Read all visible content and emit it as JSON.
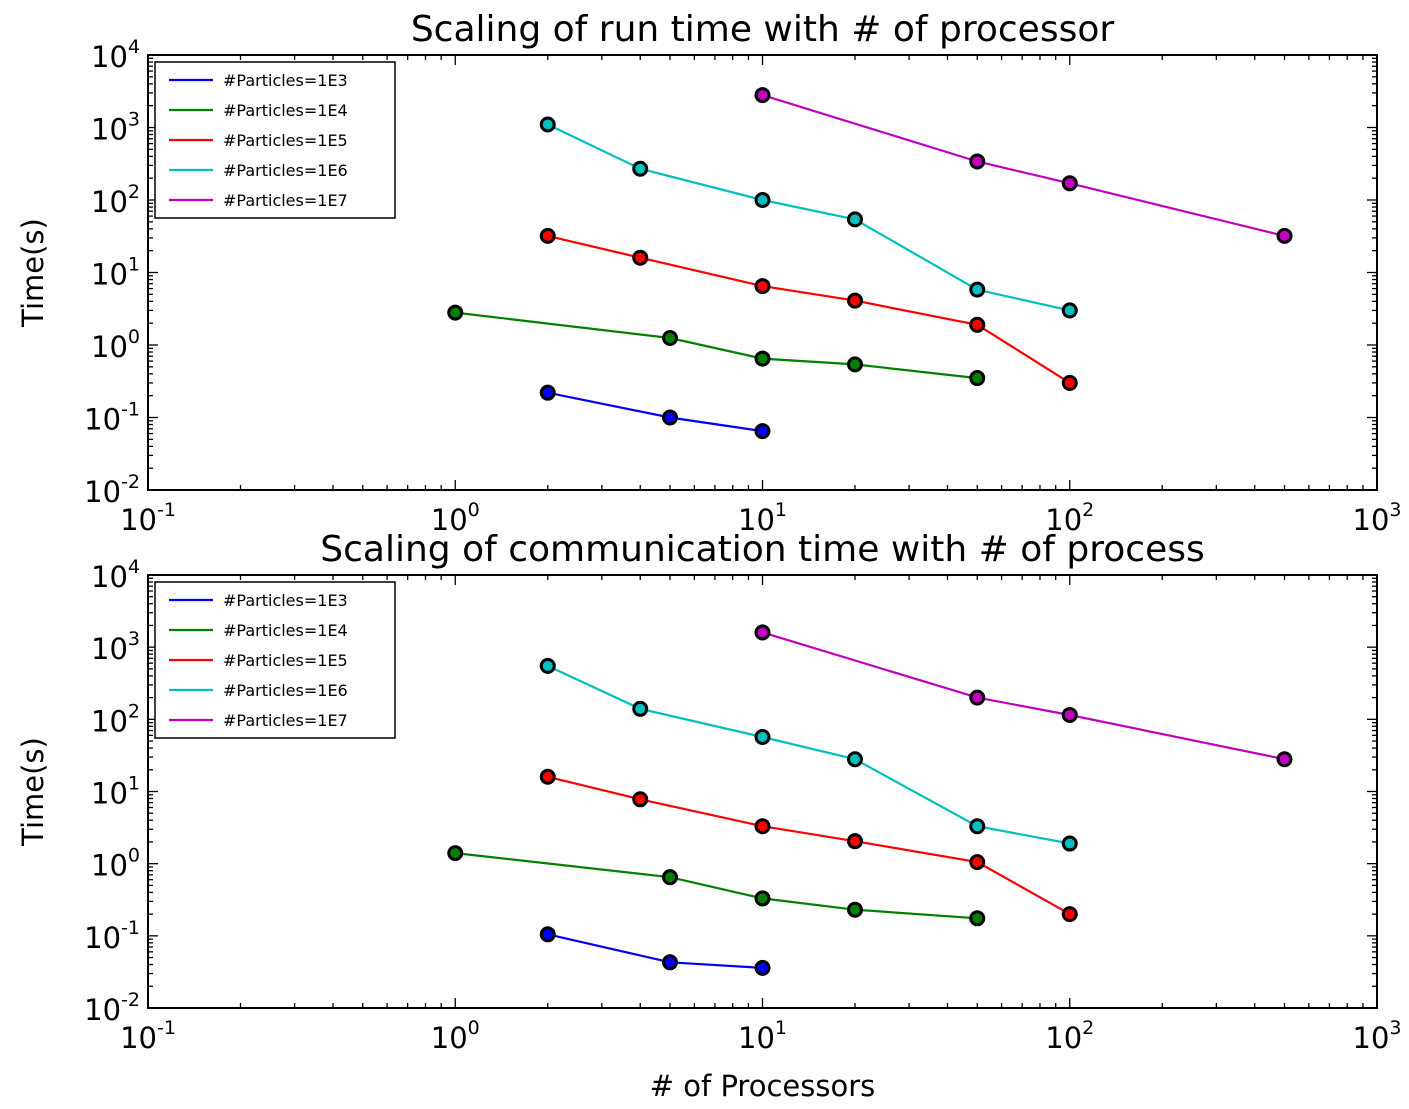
{
  "chart_data": [
    {
      "type": "line",
      "title": "Scaling of run time  with # of processor",
      "xlabel": "",
      "ylabel": "Time(s)",
      "xscale": "log",
      "yscale": "log",
      "xlim": [
        0.1,
        1000
      ],
      "ylim": [
        0.01,
        10000
      ],
      "grid": false,
      "legend": "top-left",
      "x_ticks": [
        {
          "base": "10",
          "exp": "-1"
        },
        {
          "base": "10",
          "exp": "0"
        },
        {
          "base": "10",
          "exp": "1"
        },
        {
          "base": "10",
          "exp": "2"
        },
        {
          "base": "10",
          "exp": "3"
        }
      ],
      "y_ticks": [
        {
          "base": "10",
          "exp": "-2"
        },
        {
          "base": "10",
          "exp": "-1"
        },
        {
          "base": "10",
          "exp": "0"
        },
        {
          "base": "10",
          "exp": "1"
        },
        {
          "base": "10",
          "exp": "2"
        },
        {
          "base": "10",
          "exp": "3"
        },
        {
          "base": "10",
          "exp": "4"
        }
      ],
      "series": [
        {
          "name": "#Particles=1E3",
          "color": "#0000ff",
          "x": [
            2,
            5,
            10
          ],
          "y": [
            0.22,
            0.1,
            0.065
          ]
        },
        {
          "name": "#Particles=1E4",
          "color": "#008000",
          "x": [
            1,
            5,
            10,
            20,
            50
          ],
          "y": [
            2.8,
            1.25,
            0.65,
            0.54,
            0.35
          ]
        },
        {
          "name": "#Particles=1E5",
          "color": "#ff0000",
          "x": [
            2,
            4,
            10,
            20,
            50,
            100
          ],
          "y": [
            32,
            16,
            6.5,
            4.1,
            1.9,
            0.3
          ]
        },
        {
          "name": "#Particles=1E6",
          "color": "#00bfbf",
          "x": [
            2,
            4,
            10,
            20,
            50,
            100
          ],
          "y": [
            1100,
            270,
            100,
            54,
            5.8,
            3.0
          ]
        },
        {
          "name": "#Particles=1E7",
          "color": "#bf00bf",
          "x": [
            10,
            50,
            100,
            500
          ],
          "y": [
            2800,
            340,
            170,
            32
          ]
        }
      ]
    },
    {
      "type": "line",
      "title": "Scaling of communication time  with # of process",
      "xlabel": "# of Processors",
      "ylabel": "Time(s)",
      "xscale": "log",
      "yscale": "log",
      "xlim": [
        0.1,
        1000
      ],
      "ylim": [
        0.01,
        10000
      ],
      "grid": false,
      "legend": "top-left",
      "x_ticks": [
        {
          "base": "10",
          "exp": "-1"
        },
        {
          "base": "10",
          "exp": "0"
        },
        {
          "base": "10",
          "exp": "1"
        },
        {
          "base": "10",
          "exp": "2"
        },
        {
          "base": "10",
          "exp": "3"
        }
      ],
      "y_ticks": [
        {
          "base": "10",
          "exp": "-2"
        },
        {
          "base": "10",
          "exp": "-1"
        },
        {
          "base": "10",
          "exp": "0"
        },
        {
          "base": "10",
          "exp": "1"
        },
        {
          "base": "10",
          "exp": "2"
        },
        {
          "base": "10",
          "exp": "3"
        },
        {
          "base": "10",
          "exp": "4"
        }
      ],
      "series": [
        {
          "name": "#Particles=1E3",
          "color": "#0000ff",
          "x": [
            2,
            5,
            10
          ],
          "y": [
            0.105,
            0.043,
            0.036
          ]
        },
        {
          "name": "#Particles=1E4",
          "color": "#008000",
          "x": [
            1,
            5,
            10,
            20,
            50
          ],
          "y": [
            1.4,
            0.65,
            0.33,
            0.23,
            0.175
          ]
        },
        {
          "name": "#Particles=1E5",
          "color": "#ff0000",
          "x": [
            2,
            4,
            10,
            20,
            50,
            100
          ],
          "y": [
            16,
            7.8,
            3.3,
            2.05,
            1.05,
            0.2
          ]
        },
        {
          "name": "#Particles=1E6",
          "color": "#00bfbf",
          "x": [
            2,
            4,
            10,
            20,
            50,
            100
          ],
          "y": [
            550,
            140,
            57,
            28,
            3.3,
            1.9
          ]
        },
        {
          "name": "#Particles=1E7",
          "color": "#bf00bf",
          "x": [
            10,
            50,
            100,
            500
          ],
          "y": [
            1600,
            200,
            115,
            28
          ]
        }
      ]
    }
  ]
}
